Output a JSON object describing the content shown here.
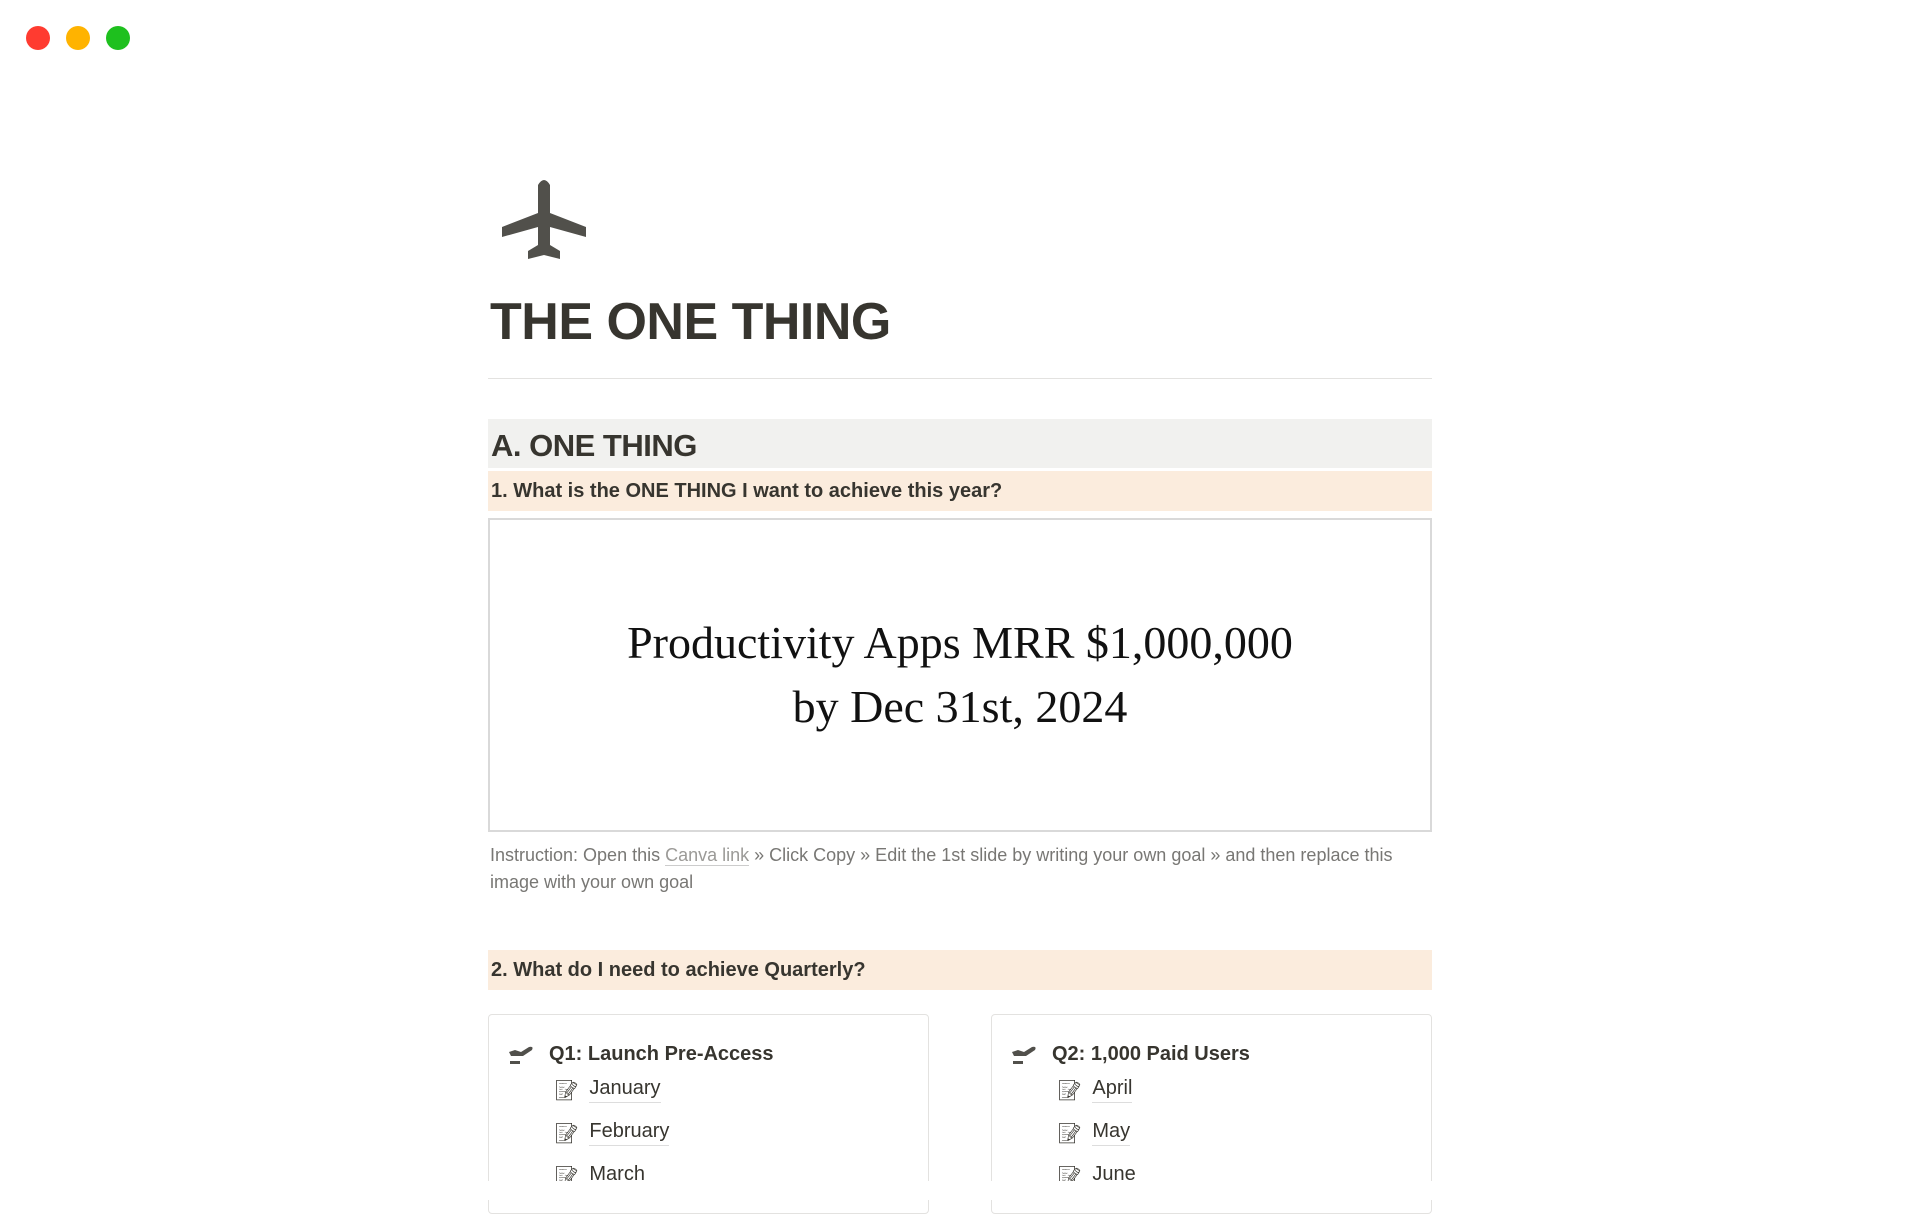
{
  "window": {
    "controls": [
      {
        "name": "close",
        "color": "#ff3b30"
      },
      {
        "name": "minimize",
        "color": "#ffb300"
      },
      {
        "name": "zoom",
        "color": "#1ec01e"
      }
    ]
  },
  "page": {
    "icon": "airplane-icon",
    "title": "THE ONE THING"
  },
  "sectionA": {
    "heading": "A. ONE THING",
    "q1": "1. What is the ONE THING I want to achieve this year?",
    "goal_line1": "Productivity Apps MRR $1,000,000",
    "goal_line2": "by Dec 31st, 2024",
    "instruction_pre": "Instruction: Open this ",
    "instruction_link": "Canva link",
    "instruction_post": " » Click Copy » Edit the 1st slide by writing your own goal » and then replace this image with your own goal",
    "q2": "2. What do I need to achieve Quarterly?"
  },
  "quarters": [
    {
      "title": "Q1: Launch Pre-Access",
      "months": [
        "January",
        "February",
        "March"
      ]
    },
    {
      "title": "Q2: 1,000 Paid Users",
      "months": [
        "April",
        "May",
        "June"
      ]
    }
  ],
  "colors": {
    "text": "#37352f",
    "section_bg": "#f1f1ef",
    "callout_bg": "#fbecdd"
  }
}
